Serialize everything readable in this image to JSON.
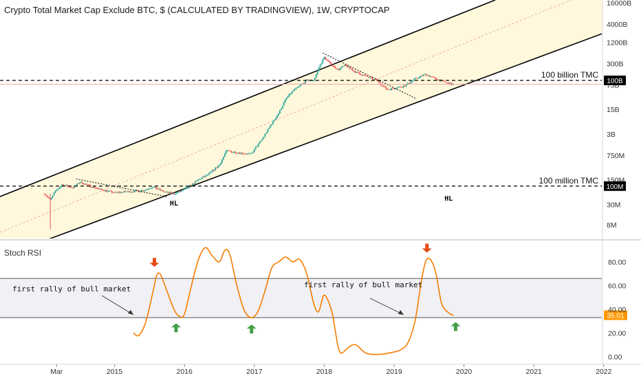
{
  "chart_data": [
    {
      "type": "candlestick",
      "title": "Crypto Total Market Cap Exclude BTC, $ (CALCULATED BY TRADINGVIEW), 1W, CRYPTOCAP",
      "y_scale": "log",
      "y_unit": "USD",
      "ylim": [
        3000000,
        16000000000000
      ],
      "y_ticks": [
        {
          "label": "16000B",
          "value": 16000000000000
        },
        {
          "label": "4000B",
          "value": 4000000000000
        },
        {
          "label": "1200B",
          "value": 1200000000000
        },
        {
          "label": "300B",
          "value": 300000000000
        },
        {
          "label": "75B",
          "value": 75000000000
        },
        {
          "label": "15B",
          "value": 15000000000
        },
        {
          "label": "3B",
          "value": 3000000000
        },
        {
          "label": "750M",
          "value": 750000000
        },
        {
          "label": "150M",
          "value": 150000000
        },
        {
          "label": "30M",
          "value": 30000000
        },
        {
          "label": "8M",
          "value": 8000000
        }
      ],
      "x_ticks": [
        {
          "label": "Mar",
          "value": 2014.17
        },
        {
          "label": "2015",
          "value": 2015
        },
        {
          "label": "2016",
          "value": 2016
        },
        {
          "label": "2017",
          "value": 2017
        },
        {
          "label": "2018",
          "value": 2018
        },
        {
          "label": "2019",
          "value": 2019
        },
        {
          "label": "2020",
          "value": 2020
        },
        {
          "label": "2021",
          "value": 2021
        },
        {
          "label": "2022",
          "value": 2022
        }
      ],
      "xlim": [
        2013.6,
        2022.1
      ],
      "series_path": [
        {
          "x": 2014.0,
          "y": 60000000
        },
        {
          "x": 2014.08,
          "y": 40000000
        },
        {
          "x": 2014.15,
          "y": 70000000
        },
        {
          "x": 2014.25,
          "y": 110000000
        },
        {
          "x": 2014.4,
          "y": 90000000
        },
        {
          "x": 2014.5,
          "y": 130000000
        },
        {
          "x": 2014.65,
          "y": 100000000
        },
        {
          "x": 2014.8,
          "y": 80000000
        },
        {
          "x": 2015.0,
          "y": 65000000
        },
        {
          "x": 2015.2,
          "y": 70000000
        },
        {
          "x": 2015.4,
          "y": 75000000
        },
        {
          "x": 2015.55,
          "y": 95000000
        },
        {
          "x": 2015.7,
          "y": 70000000
        },
        {
          "x": 2015.85,
          "y": 60000000
        },
        {
          "x": 2016.0,
          "y": 80000000
        },
        {
          "x": 2016.2,
          "y": 150000000
        },
        {
          "x": 2016.35,
          "y": 220000000
        },
        {
          "x": 2016.5,
          "y": 400000000
        },
        {
          "x": 2016.6,
          "y": 1000000000
        },
        {
          "x": 2016.75,
          "y": 900000000
        },
        {
          "x": 2016.95,
          "y": 800000000
        },
        {
          "x": 2017.1,
          "y": 2000000000
        },
        {
          "x": 2017.25,
          "y": 6000000000
        },
        {
          "x": 2017.35,
          "y": 12000000000
        },
        {
          "x": 2017.45,
          "y": 30000000000
        },
        {
          "x": 2017.55,
          "y": 50000000000
        },
        {
          "x": 2017.65,
          "y": 70000000000
        },
        {
          "x": 2017.75,
          "y": 100000000000
        },
        {
          "x": 2017.85,
          "y": 100000000000
        },
        {
          "x": 2017.93,
          "y": 250000000000
        },
        {
          "x": 2018.0,
          "y": 450000000000
        },
        {
          "x": 2018.08,
          "y": 300000000000
        },
        {
          "x": 2018.2,
          "y": 200000000000
        },
        {
          "x": 2018.3,
          "y": 270000000000
        },
        {
          "x": 2018.45,
          "y": 170000000000
        },
        {
          "x": 2018.6,
          "y": 130000000000
        },
        {
          "x": 2018.75,
          "y": 100000000000
        },
        {
          "x": 2018.9,
          "y": 55000000000
        },
        {
          "x": 2019.0,
          "y": 60000000000
        },
        {
          "x": 2019.15,
          "y": 70000000000
        },
        {
          "x": 2019.3,
          "y": 110000000000
        },
        {
          "x": 2019.45,
          "y": 150000000000
        },
        {
          "x": 2019.6,
          "y": 110000000000
        },
        {
          "x": 2019.75,
          "y": 85000000000
        },
        {
          "x": 2019.85,
          "y": 75000000000
        }
      ],
      "horizontal_lines": [
        {
          "label": "100 billion TMC",
          "badge": "100B",
          "value": 100000000000
        },
        {
          "label": "100 million TMC",
          "badge": "100M",
          "value": 100000000
        }
      ],
      "annotations": [
        {
          "text": "HL",
          "x": 2015.85,
          "y": 40000000
        },
        {
          "text": "HL",
          "x": 2019.78,
          "y": 55000000
        }
      ]
    },
    {
      "type": "line",
      "title": "Stoch RSI",
      "ylim": [
        -3,
        97
      ],
      "y_ticks": [
        "80.00",
        "60.00",
        "40.00",
        "20.00",
        "0.00"
      ],
      "band": [
        33,
        66
      ],
      "last_value": "35.01",
      "series": [
        {
          "x": [
            2015.27,
            2015.35,
            2015.45,
            2015.55,
            2015.6,
            2015.65,
            2015.72,
            2015.85,
            2015.93,
            2016.0,
            2016.1,
            2016.2,
            2016.3,
            2016.4,
            2016.5,
            2016.58,
            2016.65,
            2016.75,
            2016.85,
            2016.95,
            2017.05,
            2017.15,
            2017.25,
            2017.35,
            2017.45,
            2017.55,
            2017.65,
            2017.75,
            2017.85,
            2017.92,
            2018.0,
            2018.1,
            2018.15,
            2018.2,
            2018.25,
            2018.35,
            2018.45,
            2018.6,
            2018.8,
            2019.0,
            2019.1,
            2019.2,
            2019.3,
            2019.38,
            2019.45,
            2019.52,
            2019.6,
            2019.68,
            2019.78,
            2019.85
          ],
          "y": [
            20,
            18,
            30,
            55,
            68,
            70,
            60,
            40,
            34,
            36,
            60,
            82,
            92,
            85,
            80,
            90,
            86,
            60,
            40,
            33,
            38,
            55,
            75,
            80,
            84,
            80,
            82,
            70,
            45,
            38,
            52,
            40,
            25,
            8,
            3,
            8,
            10,
            3,
            2,
            4,
            6,
            12,
            30,
            60,
            80,
            82,
            70,
            45,
            37,
            35
          ]
        }
      ],
      "annotations": [
        {
          "text": "first rally of bull market",
          "x": 2015.4,
          "y": 35
        },
        {
          "text": "first rally of bull market",
          "x": 2019.25,
          "y": 35
        }
      ],
      "markers": [
        {
          "kind": "down",
          "x": 2015.57,
          "y": 70
        },
        {
          "kind": "down",
          "x": 2019.47,
          "y": 82
        },
        {
          "kind": "up",
          "x": 2015.88,
          "y": 34
        },
        {
          "kind": "up",
          "x": 2016.96,
          "y": 33
        },
        {
          "kind": "up",
          "x": 2019.88,
          "y": 35
        }
      ]
    }
  ],
  "colors": {
    "up": "#26a69a",
    "down": "#ef5350",
    "channel_fill": "#fff8dc",
    "stoch_line": "#f57c00",
    "band_fill": "#f0f0f5",
    "arrow_down": "#e64a19",
    "arrow_up": "#43a047",
    "midline": "#f4a6a6",
    "badge": "#000000",
    "stoch_badge": "#ff9800"
  }
}
